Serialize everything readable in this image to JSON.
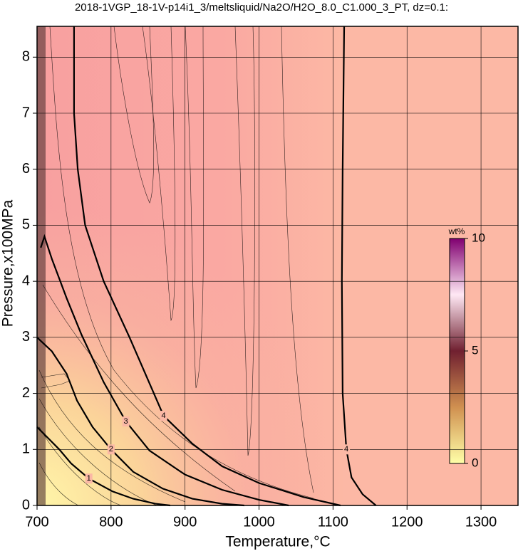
{
  "chart_data": {
    "type": "contour",
    "title": "2018-1VGP_18-1V-p14i1_3/meltsliquid/Na2O/H2O_8.0_C1.000_3_PT, dz=0.1:",
    "x_label": "Temperature,°C",
    "y_label": "Pressure,x100MPa",
    "xlim": [
      700,
      1350
    ],
    "ylim": [
      0,
      8.55
    ],
    "xticks": [
      700,
      800,
      900,
      1000,
      1100,
      1200,
      1300
    ],
    "yticks": [
      0,
      1,
      2,
      3,
      4,
      5,
      6,
      7,
      8
    ],
    "grid": true,
    "contours": [
      {
        "level": 4,
        "x": [
          1115,
          1113,
          1112,
          1113,
          1118,
          1125,
          1140,
          1158
        ],
        "y": [
          8.55,
          6,
          4,
          2,
          1,
          0.5,
          0.2,
          0
        ]
      },
      {
        "level": 4,
        "x": [
          750,
          750,
          755,
          765,
          790,
          825,
          871,
          910,
          950,
          1000,
          1060,
          1110
        ],
        "y": [
          8.55,
          7,
          6,
          5,
          4,
          3,
          1.6,
          1.1,
          0.7,
          0.4,
          0.15,
          0
        ]
      },
      {
        "level": 3,
        "x": [
          705,
          710,
          720,
          740,
          760,
          790,
          820,
          852,
          900,
          950,
          1000,
          1040
        ],
        "y": [
          4.6,
          4.8,
          4.4,
          3.7,
          3.05,
          2.2,
          1.5,
          0.98,
          0.55,
          0.28,
          0.1,
          0
        ]
      },
      {
        "level": 2,
        "x": [
          700,
          720,
          740,
          754,
          775,
          800,
          830,
          870,
          910,
          950,
          980
        ],
        "y": [
          3.0,
          2.75,
          2.35,
          1.87,
          1.4,
          1.0,
          0.6,
          0.3,
          0.12,
          0.03,
          0
        ]
      },
      {
        "level": 1,
        "x": [
          700,
          715,
          730,
          746,
          770,
          802,
          830,
          860,
          880
        ],
        "y": [
          1.4,
          1.2,
          1.0,
          0.75,
          0.48,
          0.25,
          0.12,
          0.03,
          0
        ]
      }
    ],
    "colorbar": {
      "label": "wt%",
      "lim": [
        0,
        10
      ],
      "ticks": [
        0,
        5,
        10
      ],
      "colors": [
        "#ffffa8",
        "#d09050",
        "#702030",
        "#ffe8f4",
        "#800070"
      ]
    }
  }
}
